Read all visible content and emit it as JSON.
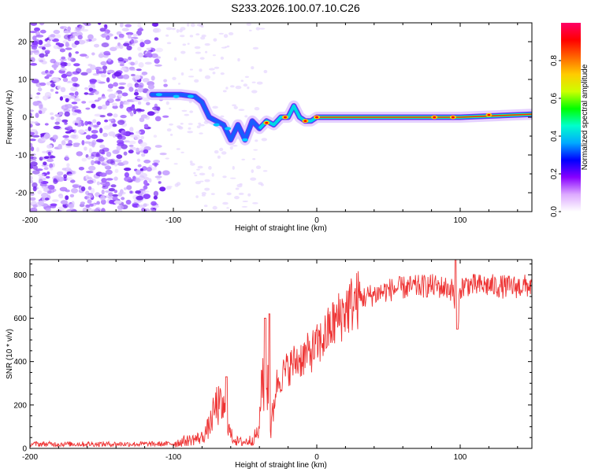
{
  "title": "S233.2026.100.07.10.C26",
  "chart_data": [
    {
      "type": "heatmap",
      "xlabel": "Height of straight line (km)",
      "ylabel": "Frequency (Hz)",
      "xlim": [
        -200,
        150
      ],
      "ylim": [
        -25,
        25
      ],
      "xticks": [
        -200,
        -100,
        0,
        100
      ],
      "xtick_labels": [
        "-200",
        "-100",
        "0",
        "100"
      ],
      "yticks": [
        -20,
        -10,
        0,
        10,
        20
      ],
      "ytick_labels": [
        "-20",
        "-10",
        "0",
        "10",
        "20"
      ],
      "ridge": {
        "x": [
          -115,
          -105,
          -95,
          -85,
          -80,
          -75,
          -70,
          -65,
          -60,
          -55,
          -50,
          -45,
          -40,
          -35,
          -30,
          -25,
          -20,
          -16,
          -12,
          -8,
          -4,
          0,
          20,
          60,
          100,
          150
        ],
        "y": [
          6,
          6,
          6,
          5.5,
          4,
          0,
          -1,
          -2,
          -6,
          -2,
          -6,
          -1,
          -3,
          -1,
          -2,
          0,
          0,
          3,
          0,
          -1,
          -1,
          0,
          0,
          0,
          0,
          0.8
        ]
      }
    },
    {
      "type": "line",
      "xlabel": "Height of straight line (km)",
      "ylabel": "SNR (10 * v/v)",
      "xlim": [
        -200,
        150
      ],
      "ylim": [
        0,
        870
      ],
      "xticks": [
        -200,
        -100,
        0,
        100
      ],
      "xtick_labels": [
        "-200",
        "-100",
        "0",
        "100"
      ],
      "yticks": [
        0,
        200,
        400,
        600,
        800
      ],
      "ytick_labels": [
        "0",
        "200",
        "400",
        "600",
        "800"
      ],
      "color": "#ee3333",
      "trend": {
        "x": [
          -200,
          -110,
          -100,
          -95,
          -80,
          -75,
          -70,
          -65,
          -60,
          -55,
          -50,
          -45,
          -40,
          -38,
          -36,
          -34,
          -32,
          -30,
          -28,
          -25,
          -20,
          -15,
          -10,
          -5,
          0,
          5,
          10,
          15,
          20,
          25,
          30,
          35,
          40,
          45,
          50,
          60,
          70,
          80,
          90,
          95,
          98,
          100,
          105,
          110,
          120,
          130,
          140,
          150
        ],
        "y": [
          20,
          20,
          22,
          30,
          50,
          100,
          200,
          180,
          60,
          30,
          30,
          40,
          80,
          400,
          120,
          350,
          80,
          200,
          300,
          330,
          370,
          400,
          420,
          440,
          470,
          510,
          560,
          600,
          640,
          670,
          690,
          700,
          710,
          720,
          730,
          740,
          745,
          750,
          740,
          730,
          560,
          740,
          755,
          750,
          750,
          745,
          745,
          750
        ]
      },
      "noise_amplitude": "high",
      "spikes": [
        {
          "x": -63,
          "y": 330
        },
        {
          "x": -36,
          "y": 600
        },
        {
          "x": -33,
          "y": 620
        },
        {
          "x": 97,
          "y": 880
        },
        {
          "x": 98,
          "y": 550
        }
      ]
    }
  ],
  "colorbar": {
    "label": "Normalized spectral amplitude",
    "range": [
      0,
      1
    ],
    "ticks": [
      0.0,
      0.2,
      0.4,
      0.6,
      0.8
    ],
    "tick_labels": [
      "0.0",
      "0.2",
      "0.4",
      "0.6",
      "0.8"
    ],
    "colors": [
      "#ffffff",
      "#ddaaff",
      "#8800ff",
      "#0000ff",
      "#00aaff",
      "#00ffcc",
      "#00ff00",
      "#ccff00",
      "#ffcc00",
      "#ff6600",
      "#ff0000",
      "#ff0066"
    ]
  }
}
